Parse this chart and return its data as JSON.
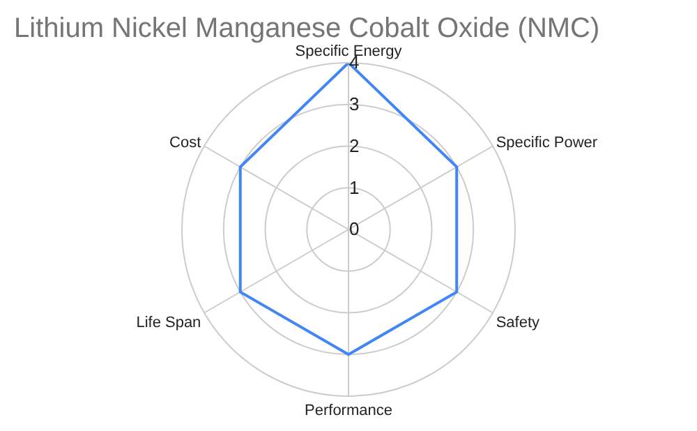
{
  "chart_data": {
    "type": "radar",
    "title": "Lithium Nickel Manganese Cobalt Oxide (NMC)",
    "categories": [
      "Specific Energy",
      "Specific Power",
      "Safety",
      "Performance",
      "Life Span",
      "Cost"
    ],
    "series": [
      {
        "color": "#4285f4",
        "values": [
          4,
          3,
          3,
          3,
          3,
          3
        ]
      }
    ],
    "ylim": [
      0,
      4
    ],
    "yticks": [
      0,
      1,
      2,
      3,
      4
    ],
    "grid": true,
    "marker": "none",
    "line_style": "solid"
  }
}
